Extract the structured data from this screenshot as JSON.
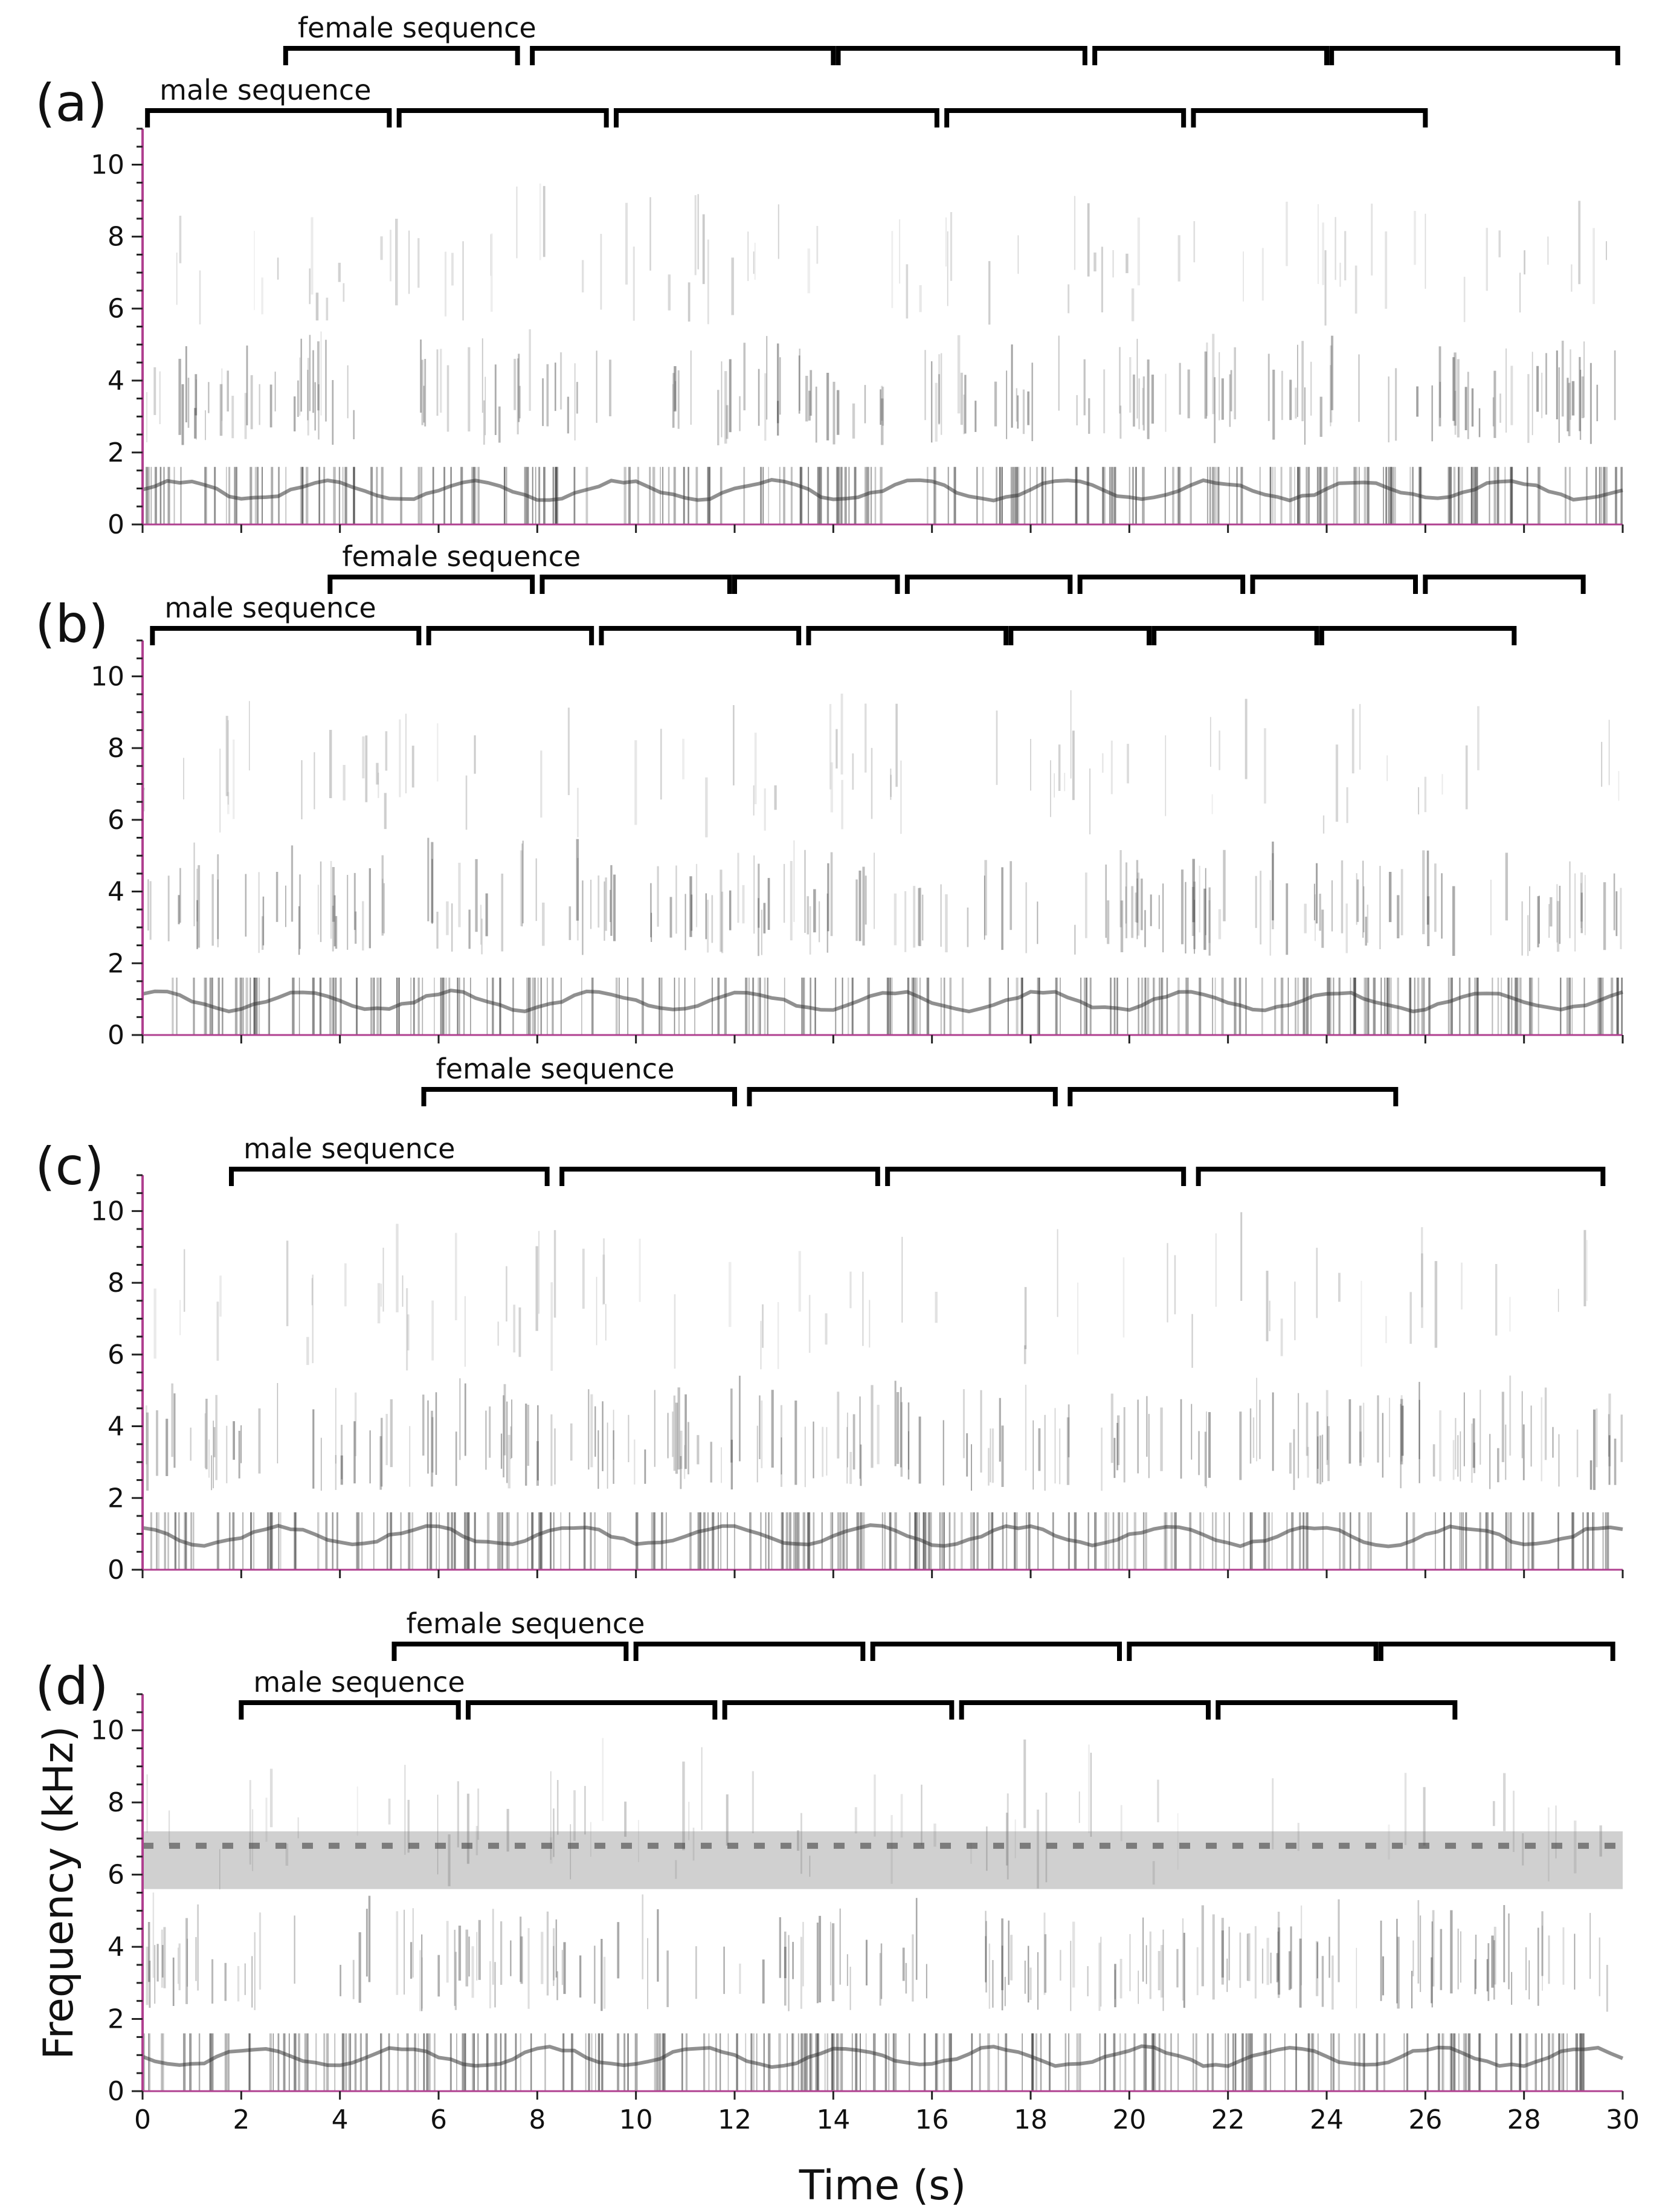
{
  "chart_data": [
    {
      "type": "spectrogram",
      "panel_label": "(a)",
      "xlabel": "",
      "ylabel": "",
      "xlim": [
        0,
        30
      ],
      "ylim": [
        0,
        11
      ],
      "y_ticks": [
        0,
        2,
        4,
        6,
        8,
        10
      ],
      "x_ticks": [
        0,
        2,
        4,
        6,
        8,
        10,
        12,
        14,
        16,
        18,
        20,
        22,
        24,
        26,
        28,
        30
      ],
      "x_tick_labels_shown": false,
      "noise_band_khz": null,
      "sequences": [
        {
          "name": "female sequence",
          "segments": [
            [
              2.9,
              7.6
            ],
            [
              7.9,
              14.0
            ],
            [
              14.1,
              19.1
            ],
            [
              19.3,
              24.0
            ],
            [
              24.1,
              29.9
            ]
          ]
        },
        {
          "name": "male sequence",
          "segments": [
            [
              0.1,
              5.0
            ],
            [
              5.2,
              9.4
            ],
            [
              9.6,
              16.1
            ],
            [
              16.3,
              21.1
            ],
            [
              21.3,
              26.0
            ]
          ]
        }
      ]
    },
    {
      "type": "spectrogram",
      "panel_label": "(b)",
      "xlabel": "",
      "ylabel": "",
      "xlim": [
        0,
        30
      ],
      "ylim": [
        0,
        11
      ],
      "y_ticks": [
        0,
        2,
        4,
        6,
        8,
        10
      ],
      "x_ticks": [
        0,
        2,
        4,
        6,
        8,
        10,
        12,
        14,
        16,
        18,
        20,
        22,
        24,
        26,
        28,
        30
      ],
      "x_tick_labels_shown": false,
      "noise_band_khz": null,
      "sequences": [
        {
          "name": "female sequence",
          "segments": [
            [
              3.8,
              7.9
            ],
            [
              8.1,
              11.9
            ],
            [
              12.0,
              15.3
            ],
            [
              15.5,
              18.8
            ],
            [
              19.0,
              22.3
            ],
            [
              22.5,
              25.8
            ],
            [
              26.0,
              29.2
            ]
          ]
        },
        {
          "name": "male sequence",
          "segments": [
            [
              0.2,
              5.6
            ],
            [
              5.8,
              9.1
            ],
            [
              9.3,
              13.3
            ],
            [
              13.5,
              17.5
            ],
            [
              17.6,
              20.4
            ],
            [
              20.5,
              23.8
            ],
            [
              23.9,
              27.8
            ]
          ]
        }
      ]
    },
    {
      "type": "spectrogram",
      "panel_label": "(c)",
      "xlabel": "",
      "ylabel": "",
      "xlim": [
        0,
        30
      ],
      "ylim": [
        0,
        11
      ],
      "y_ticks": [
        0,
        2,
        4,
        6,
        8,
        10
      ],
      "x_ticks": [
        0,
        2,
        4,
        6,
        8,
        10,
        12,
        14,
        16,
        18,
        20,
        22,
        24,
        26,
        28,
        30
      ],
      "x_tick_labels_shown": false,
      "noise_band_khz": null,
      "sequences": [
        {
          "name": "female sequence",
          "segments": [
            [
              5.7,
              12.0
            ],
            [
              12.3,
              18.5
            ],
            [
              18.8,
              25.4
            ]
          ]
        },
        {
          "name": "male sequence",
          "segments": [
            [
              1.8,
              8.2
            ],
            [
              8.5,
              14.9
            ],
            [
              15.1,
              21.1
            ],
            [
              21.4,
              29.6
            ]
          ]
        }
      ]
    },
    {
      "type": "spectrogram",
      "panel_label": "(d)",
      "xlabel": "Time (s)",
      "ylabel": "Frequency (kHz)",
      "xlim": [
        0,
        30
      ],
      "ylim": [
        0,
        11
      ],
      "y_ticks": [
        0,
        2,
        4,
        6,
        8,
        10
      ],
      "x_ticks": [
        0,
        2,
        4,
        6,
        8,
        10,
        12,
        14,
        16,
        18,
        20,
        22,
        24,
        26,
        28,
        30
      ],
      "x_tick_labels_shown": true,
      "noise_band_khz": [
        5.6,
        7.2
      ],
      "sequences": [
        {
          "name": "female sequence",
          "segments": [
            [
              5.1,
              9.8
            ],
            [
              10.0,
              14.6
            ],
            [
              14.8,
              19.8
            ],
            [
              20.0,
              25.0
            ],
            [
              25.1,
              29.8
            ]
          ]
        },
        {
          "name": "male sequence",
          "segments": [
            [
              2.0,
              6.4
            ],
            [
              6.6,
              11.6
            ],
            [
              11.8,
              16.4
            ],
            [
              16.6,
              21.6
            ],
            [
              21.8,
              26.6
            ]
          ]
        }
      ]
    }
  ],
  "colors": {
    "axis_line": "#b04090",
    "bracket": "#000000",
    "ink": "#111111"
  }
}
